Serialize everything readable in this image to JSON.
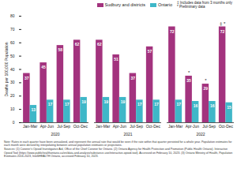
{
  "chart_data": {
    "type": "bar",
    "y_label": "Deaths per 100,000 Population",
    "categories": [
      "Jan-Mar",
      "Apr-Jun",
      "Jul-Sep",
      "Oct-Dec",
      "Jan-Mar",
      "Apr-Jun",
      "Jul-Sep",
      "Oct-Dec",
      "Jan-Mar",
      "Apr-Jun",
      "Jul-Sep",
      "Oct-Dec"
    ],
    "years": [
      "2020",
      "2020",
      "2020",
      "2020",
      "2021",
      "2021",
      "2021",
      "2021",
      "2022",
      "2022",
      "2022",
      "2022"
    ],
    "series": [
      {
        "name": "Sudbury and districts",
        "color": "#a3337e",
        "values": [
          37,
          45,
          58,
          62,
          62,
          51,
          37,
          57,
          72,
          35,
          29,
          72
        ],
        "annotations": [
          null,
          null,
          null,
          null,
          null,
          null,
          null,
          null,
          null,
          "*",
          "*",
          "‡ *"
        ]
      },
      {
        "name": "Ontario",
        "color": "#3fb7c8",
        "values": [
          13,
          17,
          17,
          19,
          19,
          19,
          17,
          17,
          17,
          16,
          16,
          15
        ]
      }
    ],
    "ylim": [
      0,
      80
    ],
    "yticks": [
      0,
      10,
      20,
      30,
      40,
      50,
      60,
      70,
      80
    ],
    "data_labels": true,
    "legend": "top-right",
    "legend_notes": [
      "‡ Includes data from 3 months only",
      "* Preliminary data"
    ],
    "note": "Note: Rates in each quarter have been annualized, and represent the annual rate that would be seen if the rate within that quarter persisted for a whole year. Population estimates for each month were derived by interpolating between annual population estimates or projections.",
    "source": "Sources: (1) Coroner's Opioid Investigative Aid, Office of the Chief Coroner for Ontario. (2) Ontario Agency for Health Protection and Promotion (Public Health Ontario). Interactive Opioid Tool (https://www.publichealthontario.ca/en/data-and-analysis/substance-use/interactive-opioid-tool). Accessed on February 10, 2023. (3) Ontario Ministry of Health, Population Estimates 2016-2023, IntelliHEALTH Ontario, accessed February 10, 2023."
  }
}
